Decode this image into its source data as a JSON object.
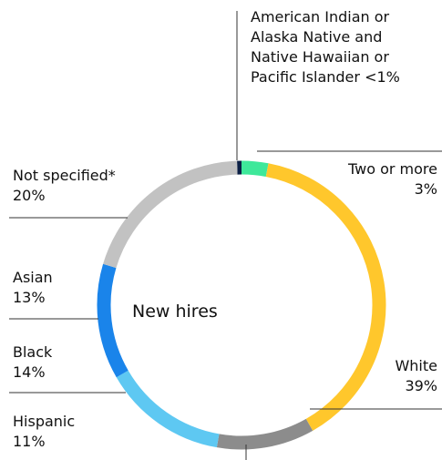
{
  "chart_data": {
    "type": "donut",
    "center_label": "New hires",
    "categories": [
      "American Indian or Alaska Native and Native Hawaiian or Pacific Islander",
      "Two or more",
      "White",
      "Hispanic",
      "Black",
      "Asian",
      "Not specified*"
    ],
    "values": [
      0.5,
      3,
      39,
      11,
      14,
      13,
      20
    ],
    "value_labels": [
      "<1%",
      "3%",
      "39%",
      "11%",
      "14%",
      "13%",
      "20%"
    ],
    "colors": [
      "#0b1f45",
      "#3ee89a",
      "#ffc72c",
      "#8c8c8c",
      "#5ec8f2",
      "#1a84ea",
      "#c2c2c2"
    ]
  }
}
